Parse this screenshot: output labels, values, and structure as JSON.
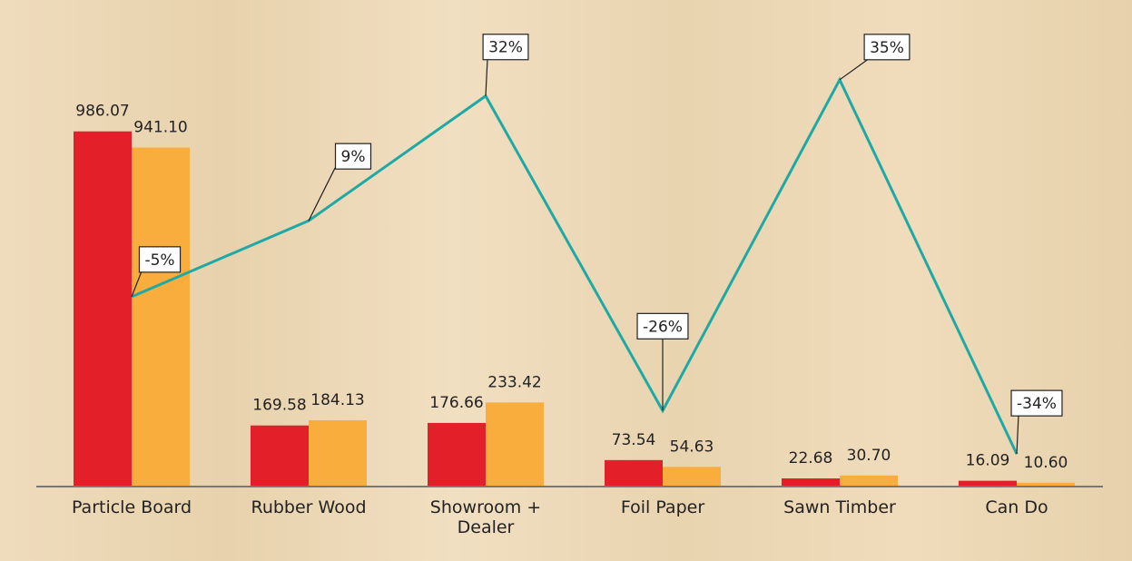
{
  "chart_data": {
    "type": "bar",
    "categories": [
      "Particle Board",
      "Rubber Wood",
      "Showroom + Dealer",
      "Foil Paper",
      "Sawn Timber",
      "Can Do"
    ],
    "series": [
      {
        "color": "#e3202a",
        "values": [
          986.07,
          169.58,
          176.66,
          73.54,
          22.68,
          16.09
        ],
        "value_labels": [
          "986.07",
          "169.58",
          "176.66",
          "73.54",
          "22.68",
          "16.09"
        ]
      },
      {
        "color": "#f9ad3c",
        "values": [
          941.1,
          184.13,
          233.42,
          54.63,
          30.7,
          10.6
        ],
        "value_labels": [
          "941.10",
          "184.13",
          "233.42",
          "54.63",
          "30.70",
          "10.60"
        ]
      },
      {
        "type": "line",
        "axis": "y2",
        "color": "#1fa9a4",
        "values": [
          -5,
          9,
          32,
          -26,
          35,
          -34
        ],
        "value_labels": [
          "-5%",
          "9%",
          "32%",
          "-26%",
          "35%",
          "-34%"
        ]
      }
    ],
    "ylim": [
      0,
      1250
    ],
    "y2lim": [
      -40,
      43
    ]
  }
}
